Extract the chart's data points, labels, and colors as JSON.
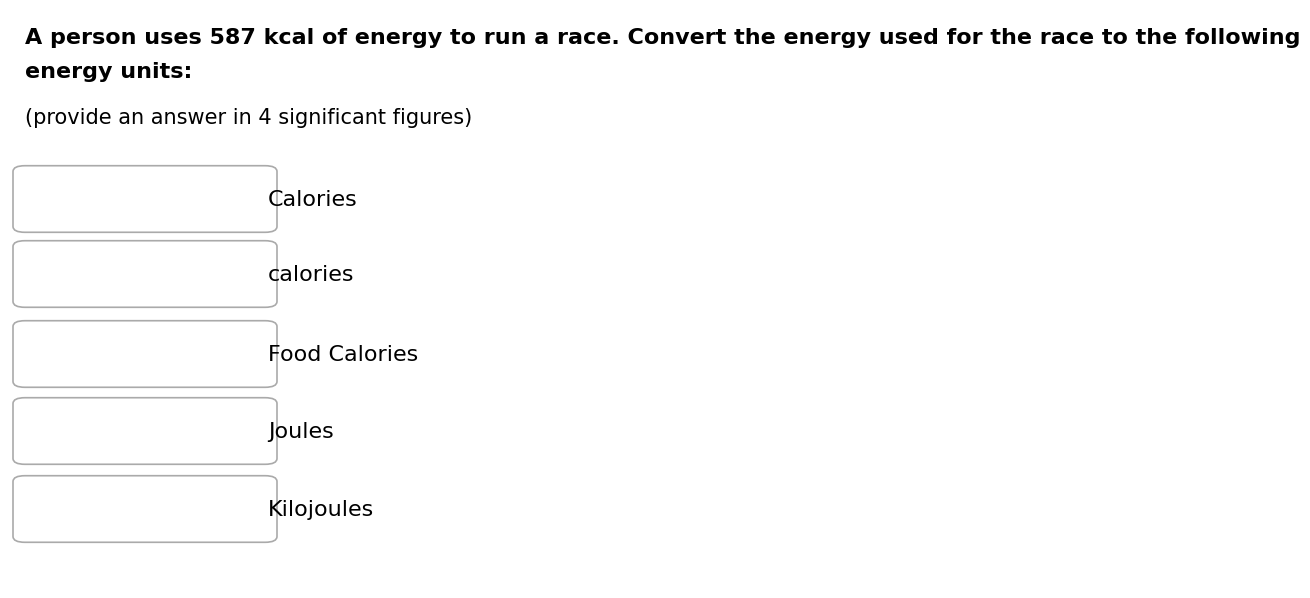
{
  "background_color": "#ffffff",
  "title_line1": "A person uses 587 kcal of energy to run a race. Convert the energy used for the race to the following",
  "title_line2": "energy units:",
  "subtitle": "(provide an answer in 4 significant figures)",
  "labels": [
    "Calories",
    "calories",
    "Food Calories",
    "Joules",
    "Kilojoules"
  ],
  "text_color": "#000000",
  "box_edge_color": "#aaaaaa",
  "title_fontsize": 16,
  "subtitle_fontsize": 15,
  "label_fontsize": 16,
  "font_family": "DejaVu Sans"
}
